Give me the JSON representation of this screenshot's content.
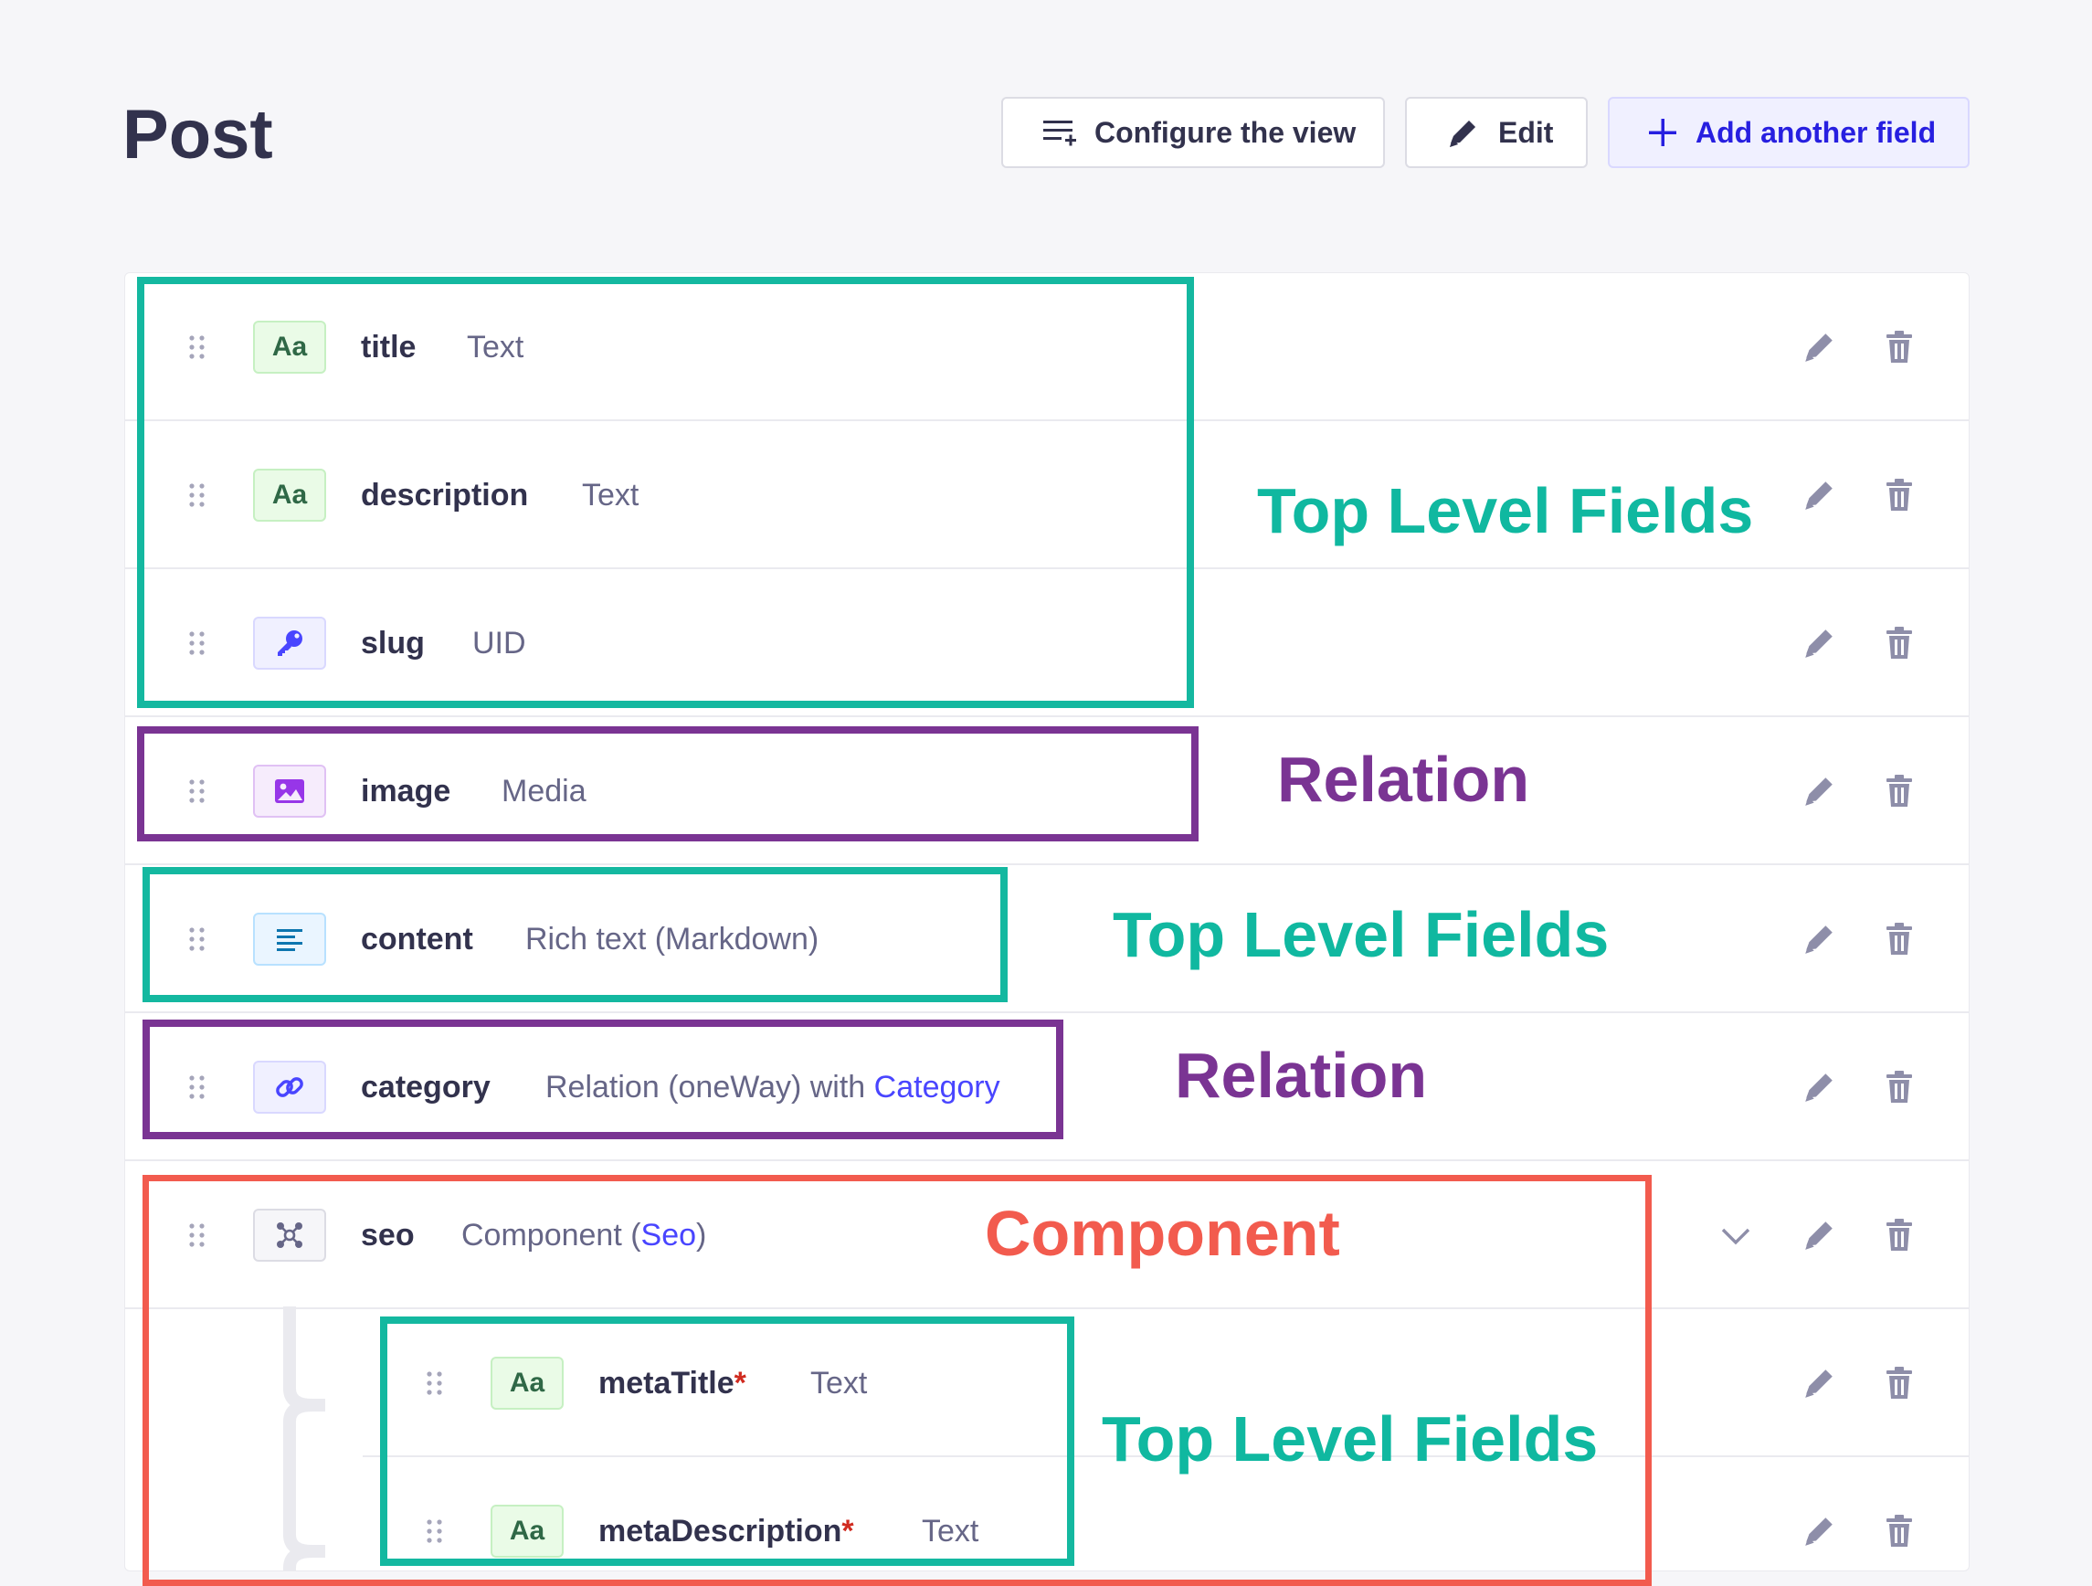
{
  "header": {
    "title": "Post",
    "configure_label": "Configure the view",
    "edit_label": "Edit",
    "add_label": "Add another field"
  },
  "fields": [
    {
      "name": "title",
      "type": "Text",
      "icon": "text-icon"
    },
    {
      "name": "description",
      "type": "Text",
      "icon": "text-icon"
    },
    {
      "name": "slug",
      "type": "UID",
      "icon": "key-icon"
    },
    {
      "name": "image",
      "type": "Media",
      "icon": "image-icon"
    },
    {
      "name": "content",
      "type": "Rich text (Markdown)",
      "icon": "rich-text-icon"
    },
    {
      "name": "category",
      "type_prefix": "Relation (oneWay) with ",
      "type_link": "Category",
      "icon": "link-icon"
    },
    {
      "name": "seo",
      "type_prefix": "Component (",
      "type_link": "Seo",
      "type_suffix": ")",
      "icon": "component-icon"
    }
  ],
  "seo_fields": [
    {
      "name": "metaTitle",
      "required_mark": "*",
      "type": "Text",
      "icon": "text-icon"
    },
    {
      "name": "metaDescription",
      "required_mark": "*",
      "type": "Text",
      "icon": "text-icon"
    }
  ],
  "icon_glyphs": {
    "text": "Aa"
  },
  "annotations": {
    "top_level_fields_1": "Top Level Fields",
    "relation_1": "Relation",
    "top_level_fields_2": "Top Level Fields",
    "relation_2": "Relation",
    "component": "Component",
    "top_level_fields_3": "Top Level Fields"
  },
  "colors": {
    "accent": "#4945ff",
    "annotation_teal": "#14b8a0",
    "annotation_purple": "#7a3493",
    "annotation_red": "#f25b4e"
  }
}
